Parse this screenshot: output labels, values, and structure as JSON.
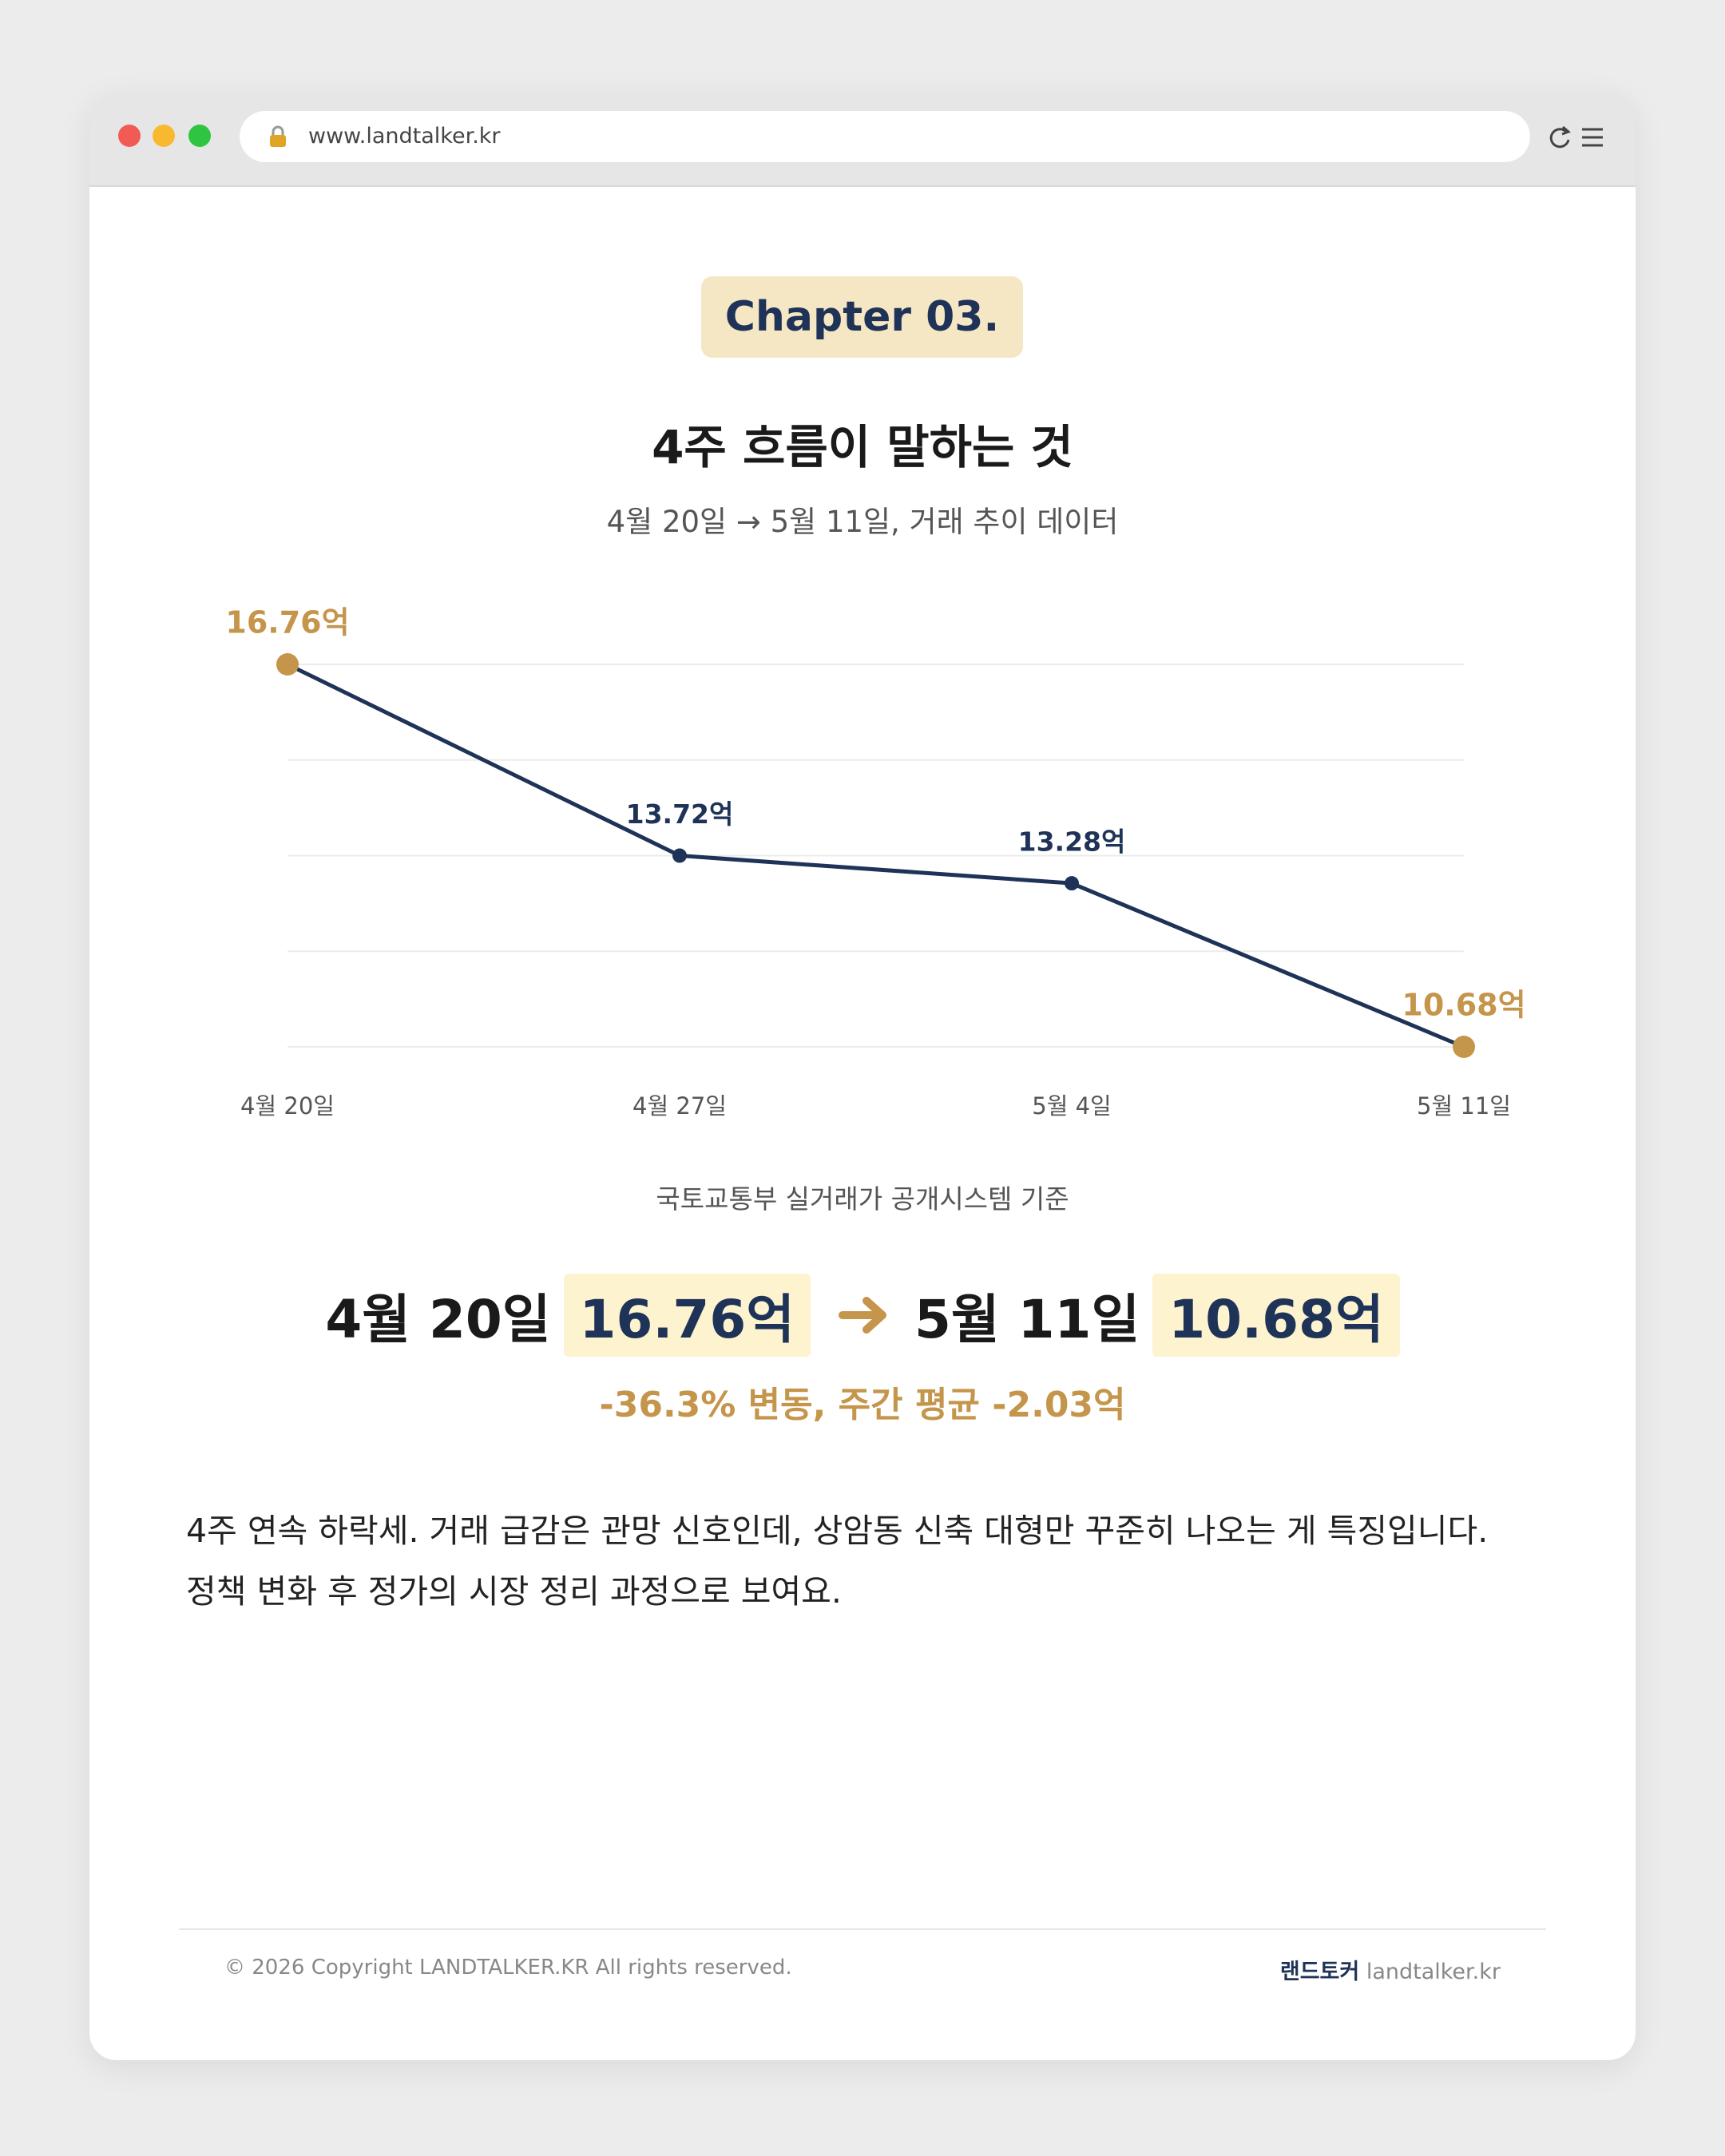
{
  "browser": {
    "url": "www.landtalker.kr"
  },
  "header": {
    "chapter": "Chapter 03.",
    "title": "4주 흐름이 말하는 것",
    "subtitle": "4월 20일 → 5월 11일, 거래 추이 데이터"
  },
  "chart_data": {
    "type": "line",
    "categories": [
      "4월 20일",
      "4월 27일",
      "5월 4일",
      "5월 11일"
    ],
    "values": [
      16.76,
      13.72,
      13.28,
      10.68
    ],
    "value_labels": [
      "16.76억",
      "13.72억",
      "13.28억",
      "10.68억"
    ],
    "color": "#1e3357",
    "accent_color": "#c4954a",
    "ylim": [
      10.68,
      16.76
    ],
    "yticks": [
      10.68,
      12.2,
      13.72,
      15.24,
      16.76
    ],
    "grid": true,
    "source": "국토교통부 실거래가 공개시스템 기준"
  },
  "summary": {
    "from_date": "4월 20일",
    "from_value": "16.76억",
    "to_date": "5월 11일",
    "to_value": "10.68억",
    "change": "-36.3% 변동, 주간 평균 -2.03억"
  },
  "body": {
    "lines": [
      "4주 연속 하락세. 거래 급감은 관망 신호인데, 상암동 신축 대형만 꾸준히 나오는 게 특징입니다.",
      "정책 변화 후 정가의 시장 정리 과정으로 보여요."
    ]
  },
  "footer": {
    "copyright": "© 2026 Copyright LANDTALKER.KR All rights reserved.",
    "brand": "랜드토커",
    "site": "landtalker.kr"
  }
}
